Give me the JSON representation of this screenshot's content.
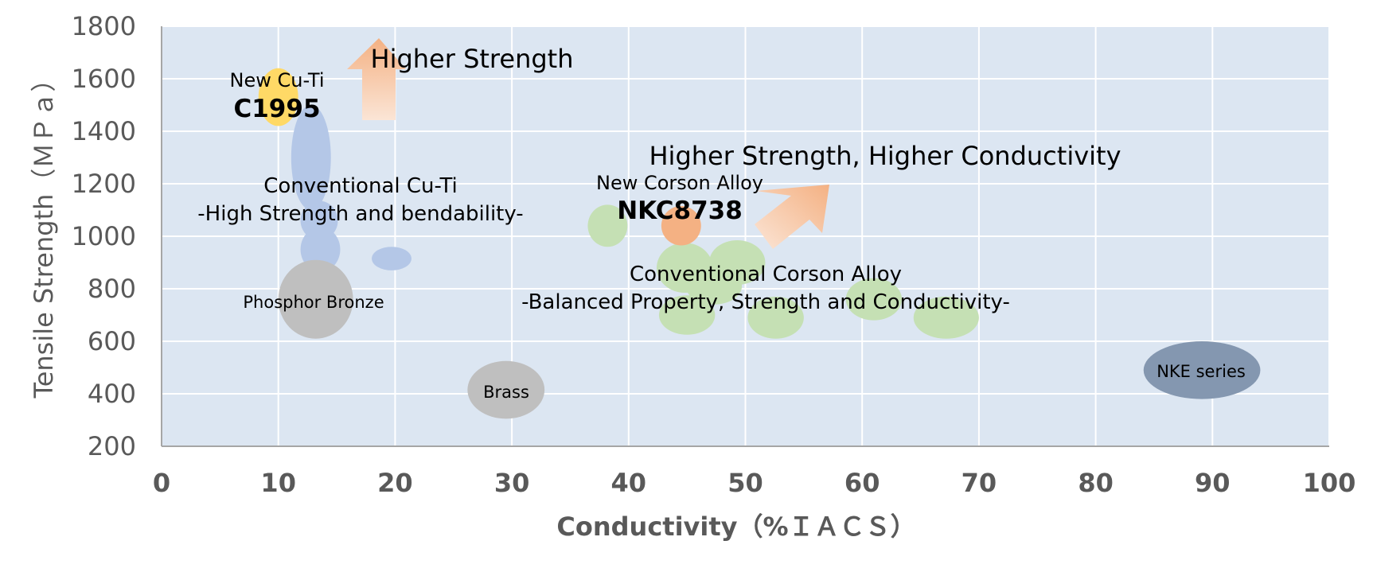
{
  "chart_data": {
    "type": "scatter",
    "xlabel": "Conductivity（%ＩＡＣＳ）",
    "ylabel": "Tensile Strength（ＭＰａ）",
    "xlim": [
      0,
      100
    ],
    "ylim": [
      200,
      1800
    ],
    "x_ticks": [
      "0",
      "10",
      "20",
      "30",
      "40",
      "50",
      "60",
      "70",
      "80",
      "90",
      "100"
    ],
    "y_ticks": [
      "200",
      "400",
      "600",
      "800",
      "1000",
      "1200",
      "1400",
      "1600",
      "1800"
    ],
    "grid": true,
    "colors": {
      "plot_bg": "#dce6f2",
      "cu_ti_new": "#ffd966",
      "cu_ti_conventional": "#b4c7e7",
      "corson_conventional": "#c5e0b4",
      "corson_new": "#f4b183",
      "phosphor_bronze": "#bfbfbf",
      "brass": "#bfbfbf",
      "nke": "#8497b0",
      "arrow": "#f4b183"
    },
    "regions": [
      {
        "group": "New Cu-Ti",
        "x": 10,
        "y": 1530,
        "rx": 1.7,
        "ry": 110,
        "color": "#ffd966"
      },
      {
        "group": "Conventional Cu-Ti",
        "x": 12.8,
        "y": 1300,
        "rx": 1.7,
        "ry": 200,
        "color": "#b4c7e7"
      },
      {
        "group": "Conventional Cu-Ti",
        "x": 13.5,
        "y": 1060,
        "rx": 1.6,
        "ry": 75,
        "color": "#b4c7e7"
      },
      {
        "group": "Conventional Cu-Ti",
        "x": 13.6,
        "y": 950,
        "rx": 1.7,
        "ry": 85,
        "color": "#b4c7e7"
      },
      {
        "group": "Conventional Cu-Ti",
        "x": 19.7,
        "y": 915,
        "rx": 1.7,
        "ry": 45,
        "color": "#b4c7e7"
      },
      {
        "group": "Phosphor Bronze",
        "x": 13.2,
        "y": 760,
        "rx": 3.2,
        "ry": 150,
        "color": "#bfbfbf"
      },
      {
        "group": "Brass",
        "x": 29.5,
        "y": 415,
        "rx": 3.3,
        "ry": 110,
        "color": "#bfbfbf"
      },
      {
        "group": "Conventional Corson Alloy",
        "x": 38.2,
        "y": 1040,
        "rx": 1.7,
        "ry": 80,
        "color": "#c5e0b4"
      },
      {
        "group": "Conventional Corson Alloy",
        "x": 44.8,
        "y": 880,
        "rx": 2.4,
        "ry": 95,
        "color": "#c5e0b4"
      },
      {
        "group": "Conventional Corson Alloy",
        "x": 49.3,
        "y": 900,
        "rx": 2.4,
        "ry": 85,
        "color": "#c5e0b4"
      },
      {
        "group": "Conventional Corson Alloy",
        "x": 47.3,
        "y": 810,
        "rx": 2.4,
        "ry": 70,
        "color": "#c5e0b4"
      },
      {
        "group": "Conventional Corson Alloy",
        "x": 45,
        "y": 700,
        "rx": 2.4,
        "ry": 75,
        "color": "#c5e0b4"
      },
      {
        "group": "Conventional Corson Alloy",
        "x": 52.6,
        "y": 690,
        "rx": 2.4,
        "ry": 80,
        "color": "#c5e0b4"
      },
      {
        "group": "Conventional Corson Alloy",
        "x": 61,
        "y": 760,
        "rx": 2.4,
        "ry": 80,
        "color": "#c5e0b4"
      },
      {
        "group": "Conventional Corson Alloy",
        "x": 67.2,
        "y": 690,
        "rx": 2.8,
        "ry": 80,
        "color": "#c5e0b4"
      },
      {
        "group": "New Corson Alloy",
        "x": 44.5,
        "y": 1040,
        "rx": 1.7,
        "ry": 75,
        "color": "#f4b183"
      },
      {
        "group": "NKE series",
        "x": 89.1,
        "y": 490,
        "rx": 5,
        "ry": 110,
        "color": "#8497b0"
      }
    ],
    "annotations": {
      "higher_strength": "Higher Strength",
      "higher_strength_conductivity": "Higher Strength, Higher Conductivity",
      "new_cu_ti": "New Cu-Ti",
      "c1995": "C1995",
      "conventional_cu_ti_1": "Conventional Cu-Ti",
      "conventional_cu_ti_2": "-High Strength and bendability-",
      "phosphor_bronze": "Phosphor Bronze",
      "new_corson": "New Corson Alloy",
      "nkc8738": "NKC8738",
      "conventional_corson_1": "Conventional Corson Alloy",
      "conventional_corson_2": "-Balanced Property, Strength and Conductivity-",
      "brass": "Brass",
      "nke_series": "NKE series"
    }
  }
}
